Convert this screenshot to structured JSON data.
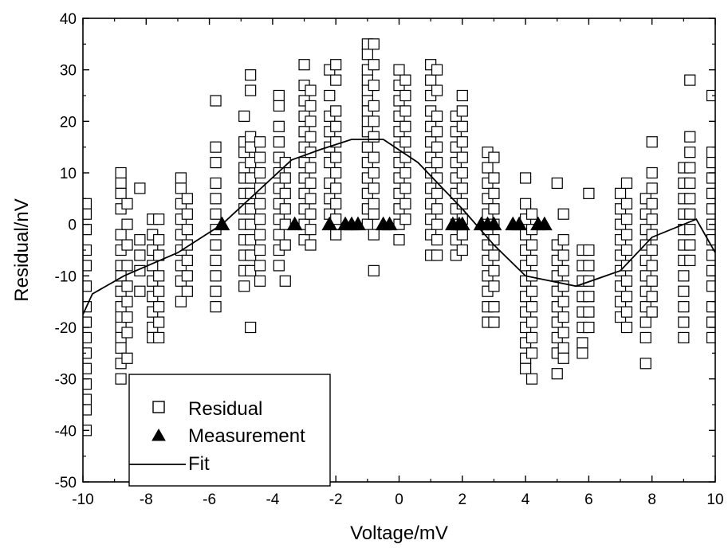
{
  "chart_data": {
    "type": "scatter",
    "xlabel": "Voltage/mV",
    "ylabel": "Residual/nV",
    "xlim": [
      -10,
      10
    ],
    "ylim": [
      -50,
      40
    ],
    "x_ticks": [
      -10,
      -8,
      -6,
      -4,
      -2,
      0,
      2,
      4,
      6,
      8,
      10
    ],
    "y_ticks": [
      -50,
      -40,
      -30,
      -20,
      -10,
      0,
      10,
      20,
      30,
      40
    ],
    "grid": false,
    "legend_position": "bottom-left",
    "colors": {
      "axis": "#000000",
      "marker_fill_open": "#ffffff",
      "marker_fill_solid": "#000000",
      "line": "#000000"
    },
    "series": [
      {
        "name": "Residual",
        "marker": "open-square",
        "columns": [
          {
            "x": -9.9,
            "y": [
              4,
              2,
              -1,
              -5,
              -8,
              -12,
              -16,
              -19,
              -22,
              -25,
              -28,
              -31,
              -34,
              -36,
              -40
            ]
          },
          {
            "x": -8.8,
            "y": [
              10,
              8,
              6,
              3,
              -2,
              -5,
              -8,
              -10,
              -13,
              -16,
              -18,
              -20,
              -22,
              -24,
              -27,
              -30
            ]
          },
          {
            "x": -8.6,
            "y": [
              4,
              0,
              -4,
              -8,
              -12,
              -15,
              -18,
              -21,
              -26
            ]
          },
          {
            "x": -8.2,
            "y": [
              7,
              -3,
              -6,
              -9,
              -13
            ]
          },
          {
            "x": -7.8,
            "y": [
              1,
              -2,
              -5,
              -8,
              -11,
              -14,
              -17,
              -20,
              -22
            ]
          },
          {
            "x": -7.6,
            "y": [
              1,
              -3,
              -6,
              -10,
              -13,
              -16,
              -19,
              -22
            ]
          },
          {
            "x": -6.9,
            "y": [
              9,
              7,
              4,
              1,
              -2,
              -5,
              -8,
              -11,
              -15
            ]
          },
          {
            "x": -6.7,
            "y": [
              5,
              2,
              -1,
              -4,
              -7,
              -10,
              -13
            ]
          },
          {
            "x": -5.8,
            "y": [
              24,
              15,
              12,
              8,
              5,
              2,
              -1,
              -4,
              -7,
              -10,
              -13,
              -16
            ]
          },
          {
            "x": -4.9,
            "y": [
              21,
              16,
              14,
              11,
              9,
              6,
              3,
              0,
              -3,
              -6,
              -9,
              -12
            ]
          },
          {
            "x": -4.7,
            "y": [
              29,
              26,
              17,
              15,
              12,
              9,
              6,
              3,
              0,
              -3,
              -6,
              -9,
              -20
            ]
          },
          {
            "x": -4.4,
            "y": [
              16,
              13,
              10,
              7,
              4,
              1,
              -2,
              -5,
              -8,
              -11
            ]
          },
          {
            "x": -3.8,
            "y": [
              25,
              23,
              19,
              16,
              13,
              10,
              7,
              4,
              1,
              -2,
              -5,
              -8
            ]
          },
          {
            "x": -3.6,
            "y": [
              12,
              9,
              6,
              3,
              0,
              -4,
              -11
            ]
          },
          {
            "x": -3.0,
            "y": [
              31,
              27,
              24,
              21,
              18,
              15,
              12,
              9,
              6,
              3,
              0,
              -3
            ]
          },
          {
            "x": -2.8,
            "y": [
              26,
              23,
              20,
              17,
              14,
              11,
              8,
              5,
              2,
              -1,
              -4
            ]
          },
          {
            "x": -2.2,
            "y": [
              30,
              25,
              21,
              18,
              15,
              12,
              8,
              5,
              2
            ]
          },
          {
            "x": -2.0,
            "y": [
              31,
              28,
              22,
              19,
              16,
              13,
              10,
              7,
              4,
              1,
              -2
            ]
          },
          {
            "x": -1.0,
            "y": [
              35,
              33,
              30,
              28,
              26,
              24,
              22,
              20,
              18,
              15,
              12,
              9,
              6,
              3,
              0
            ]
          },
          {
            "x": -0.8,
            "y": [
              35,
              31,
              27,
              23,
              20,
              17,
              13,
              10,
              7,
              4,
              2,
              -2,
              -9
            ]
          },
          {
            "x": 0.0,
            "y": [
              30,
              27,
              24,
              21,
              18,
              15,
              12,
              9,
              6,
              3,
              0,
              -3
            ]
          },
          {
            "x": 0.2,
            "y": [
              28,
              25,
              22,
              19,
              16,
              13,
              10,
              7,
              4,
              1
            ]
          },
          {
            "x": 1.0,
            "y": [
              31,
              28,
              25,
              22,
              19,
              16,
              13,
              10,
              7,
              4,
              1,
              -2,
              -6
            ]
          },
          {
            "x": 1.2,
            "y": [
              30,
              26,
              21,
              18,
              15,
              12,
              9,
              6,
              3,
              0,
              -3,
              -6
            ]
          },
          {
            "x": 1.8,
            "y": [
              21,
              18,
              15,
              12,
              9,
              6,
              3,
              0,
              -3,
              -6
            ]
          },
          {
            "x": 2.0,
            "y": [
              25,
              22,
              19,
              16,
              13,
              10,
              7,
              4,
              1,
              -2,
              -5
            ]
          },
          {
            "x": 2.8,
            "y": [
              14,
              11,
              8,
              5,
              2,
              -1,
              -4,
              -7,
              -10,
              -13,
              -16,
              -19
            ]
          },
          {
            "x": 3.0,
            "y": [
              13,
              9,
              6,
              3,
              0,
              -3,
              -6,
              -9,
              -12,
              -16,
              -19
            ]
          },
          {
            "x": 4.0,
            "y": [
              9,
              4,
              1,
              -2,
              -5,
              -8,
              -11,
              -14,
              -17,
              -20,
              -23,
              -26,
              -28
            ]
          },
          {
            "x": 4.2,
            "y": [
              2,
              -1,
              -4,
              -7,
              -10,
              -13,
              -16,
              -19,
              -22,
              -25,
              -30
            ]
          },
          {
            "x": 5.0,
            "y": [
              8,
              -4,
              -7,
              -10,
              -13,
              -16,
              -19,
              -22,
              -25,
              -29
            ]
          },
          {
            "x": 5.2,
            "y": [
              2,
              -3,
              -6,
              -9,
              -12,
              -15,
              -18,
              -21,
              -24,
              -26
            ]
          },
          {
            "x": 5.8,
            "y": [
              -5,
              -8,
              -11,
              -14,
              -17,
              -20,
              -23,
              -25
            ]
          },
          {
            "x": 6.0,
            "y": [
              6,
              -5,
              -8,
              -11,
              -14,
              -17,
              -20
            ]
          },
          {
            "x": 7.0,
            "y": [
              6,
              3,
              0,
              -3,
              -6,
              -9,
              -12,
              -15,
              -18
            ]
          },
          {
            "x": 7.2,
            "y": [
              8,
              4,
              1,
              -2,
              -5,
              -8,
              -11,
              -14,
              -17,
              -20
            ]
          },
          {
            "x": 7.8,
            "y": [
              5,
              2,
              -1,
              -4,
              -7,
              -10,
              -13,
              -16,
              -19,
              -22,
              -27
            ]
          },
          {
            "x": 8.0,
            "y": [
              16,
              10,
              7,
              4,
              1,
              -2,
              -5,
              -8,
              -11,
              -14,
              -17
            ]
          },
          {
            "x": 9.0,
            "y": [
              11,
              8,
              5,
              2,
              -1,
              -4,
              -7,
              -10,
              -13,
              -16,
              -19,
              -22
            ]
          },
          {
            "x": 9.2,
            "y": [
              28,
              17,
              14,
              11,
              8,
              5,
              2,
              -1,
              -4,
              -7
            ]
          },
          {
            "x": 9.9,
            "y": [
              25,
              14,
              12,
              9,
              6,
              3,
              0,
              -3,
              -6,
              -9,
              -12,
              -16,
              -19,
              -22
            ]
          }
        ]
      },
      {
        "name": "Measurement",
        "marker": "filled-triangle",
        "x": [
          -5.6,
          -3.3,
          -2.2,
          -1.7,
          -1.5,
          -1.3,
          -0.5,
          -0.3,
          1.7,
          1.9,
          2.0,
          2.6,
          2.8,
          3.0,
          3.6,
          3.8,
          4.4,
          4.6
        ],
        "y": [
          0,
          0,
          0,
          0,
          0,
          0,
          0,
          0,
          0,
          0,
          0,
          0,
          0,
          0,
          0,
          0,
          0,
          0
        ]
      },
      {
        "name": "Fit",
        "marker": "line",
        "x": [
          -10,
          -9.7,
          -8.7,
          -7.0,
          -5.6,
          -3.4,
          -2.5,
          -1.5,
          -0.5,
          0.6,
          2.0,
          3.0,
          4.0,
          5.6,
          7.0,
          8.0,
          9.4,
          10
        ],
        "y": [
          -17.5,
          -13.5,
          -10,
          -5.5,
          0,
          12.5,
          14.5,
          16.5,
          16.5,
          12,
          3,
          -4,
          -10,
          -12,
          -9,
          -2.5,
          1,
          -5.5
        ]
      }
    ]
  }
}
